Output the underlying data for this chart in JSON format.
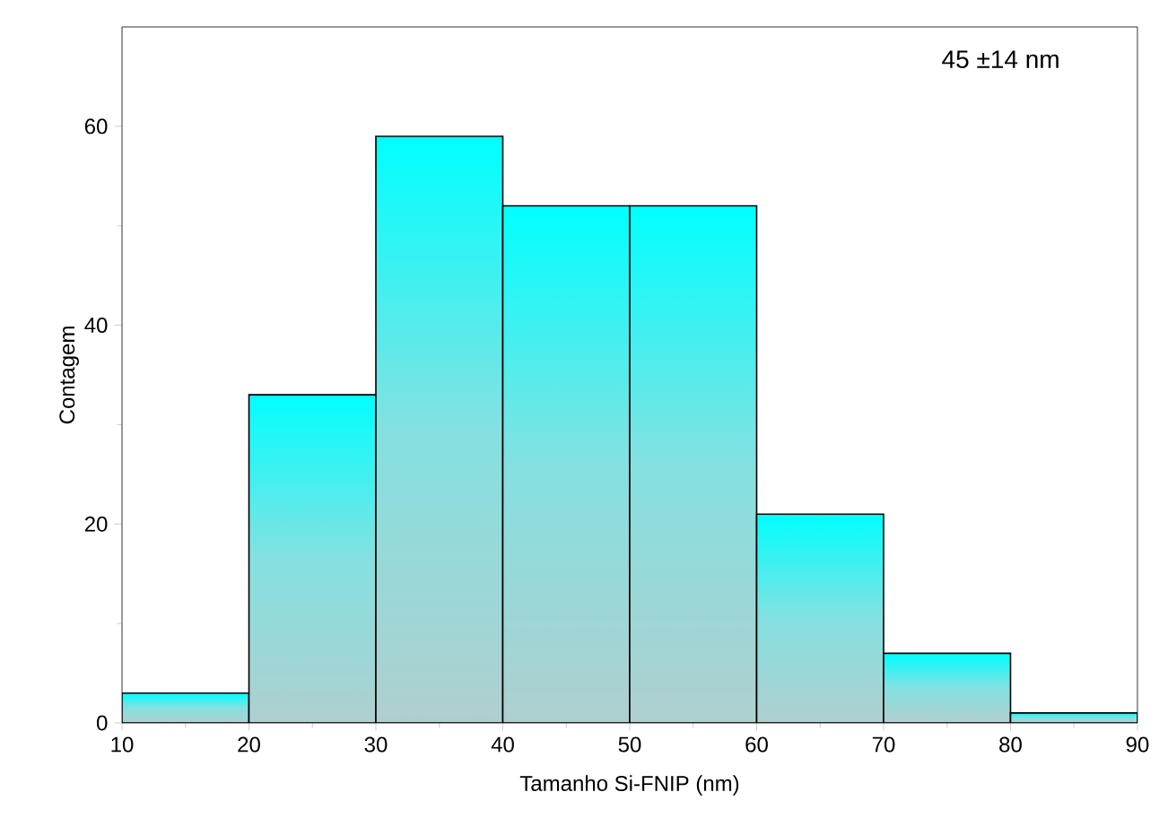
{
  "chart_data": {
    "type": "histogram",
    "xlabel": "Tamanho Si-FNIP (nm)",
    "ylabel": "Contagem",
    "annotations": [
      "45 ±14 nm"
    ],
    "bins": [
      10,
      20,
      30,
      40,
      50,
      60,
      70,
      80,
      90
    ],
    "values": [
      3,
      33,
      59,
      52,
      52,
      21,
      7,
      1
    ],
    "color": "#00ffff",
    "xlim": [
      10,
      90
    ],
    "xticks": [
      10,
      20,
      30,
      40,
      50,
      60,
      70,
      80,
      90
    ],
    "ylim": [
      0,
      70
    ],
    "yticks": [
      0,
      20,
      40,
      60
    ]
  }
}
